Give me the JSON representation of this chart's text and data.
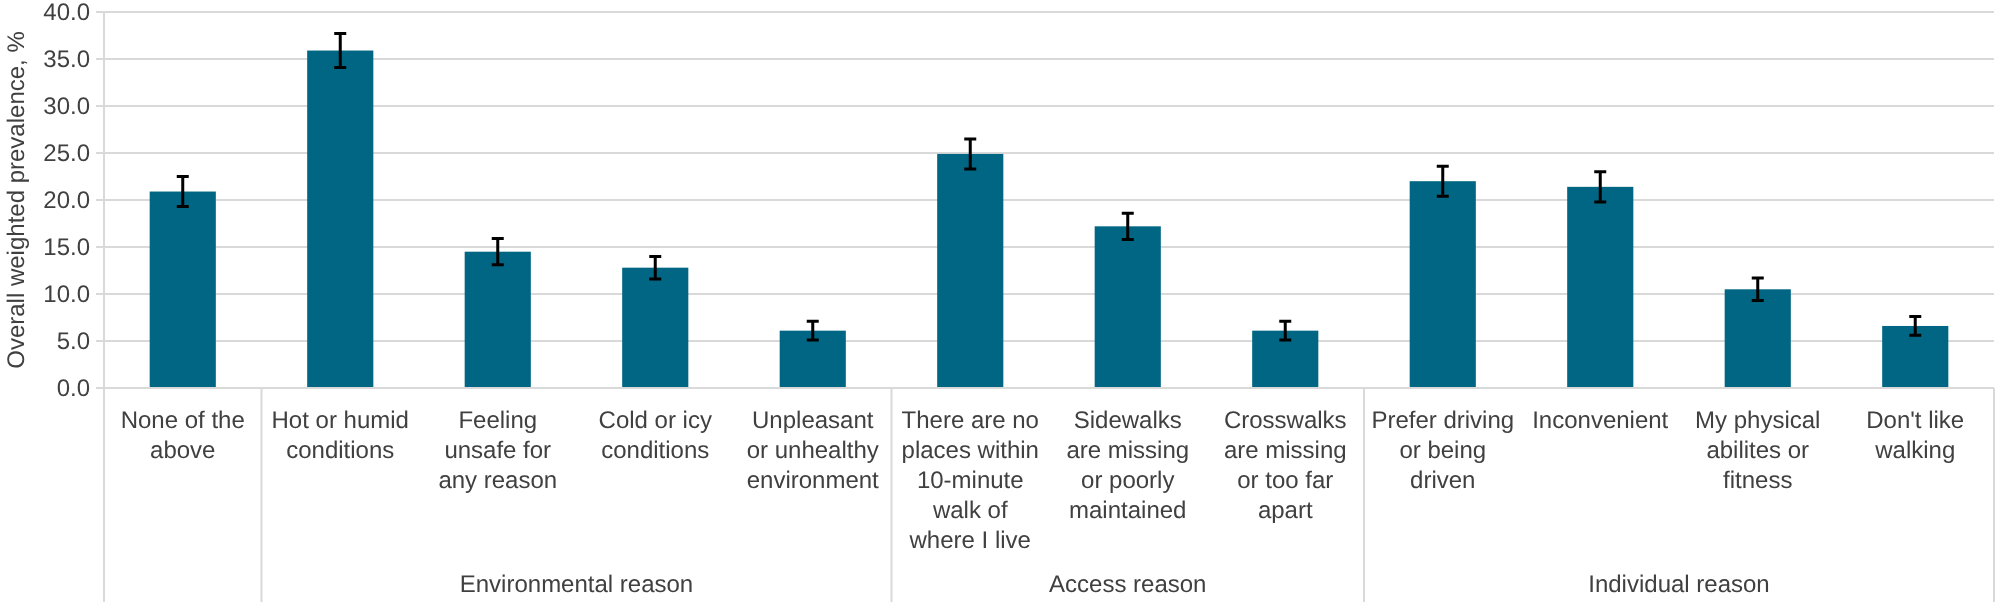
{
  "chart_data": {
    "type": "bar",
    "ylabel": "Overall weighted prevalence, %",
    "categories": [
      "None of the above",
      "Hot or humid conditions",
      "Feeling unsafe for any reason",
      "Cold or icy conditions",
      "Unpleasant or unhealthy environment",
      "There are no places within 10-minute walk of where I live",
      "Sidewalks are missing or poorly maintained",
      "Crosswalks are missing or too far apart",
      "Prefer driving or being driven",
      "Inconvenient",
      "My physical abilites or fitness",
      "Don't like walking"
    ],
    "values": [
      20.9,
      35.9,
      14.5,
      12.8,
      6.1,
      24.9,
      17.2,
      6.1,
      22.0,
      21.4,
      10.5,
      6.6
    ],
    "errors": [
      1.6,
      1.8,
      1.4,
      1.2,
      1.0,
      1.6,
      1.4,
      1.0,
      1.6,
      1.6,
      1.2,
      1.0
    ],
    "color": "#006683",
    "ylim": [
      0,
      40
    ],
    "yticks": [
      {
        "value": 0,
        "label": "0.0"
      },
      {
        "value": 5,
        "label": "5.0"
      },
      {
        "value": 10,
        "label": "10.0"
      },
      {
        "value": 15,
        "label": "15.0"
      },
      {
        "value": 20,
        "label": "20.0"
      },
      {
        "value": 25,
        "label": "25.0"
      },
      {
        "value": 30,
        "label": "30.0"
      },
      {
        "value": 35,
        "label": "35.0"
      },
      {
        "value": 40,
        "label": "40.0"
      }
    ],
    "grid": "y",
    "annotations": [
      "Environmental reason",
      "Access reason",
      "Individual reason"
    ]
  }
}
